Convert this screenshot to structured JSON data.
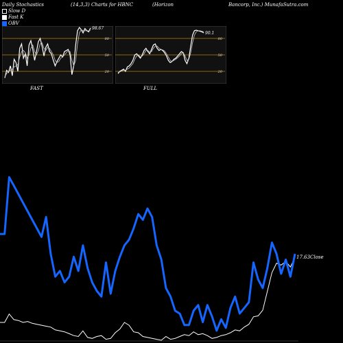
{
  "header": {
    "title_left": "Daily Stochastics",
    "params": "(14,3,3) Charts for HBNC",
    "company_a": "(Horizon",
    "company_b": "Bancorp, Inc.) MunafaSutra.com"
  },
  "legend": {
    "items": [
      {
        "label": "Slow  D",
        "swatch": "#000000",
        "border": "#ffffff"
      },
      {
        "label": "Fast K",
        "swatch": "#ffffff",
        "border": "#ffffff"
      },
      {
        "label": "OBV",
        "swatch": "#1565ff",
        "border": "#1565ff"
      }
    ]
  },
  "colors": {
    "background": "#000000",
    "obv": "#1565ff",
    "price": "#ffffff",
    "level_line": "#b8860b",
    "panel_bg": "#111111"
  },
  "chart_data": [
    {
      "type": "line",
      "panel": "FAST",
      "label": "FAST",
      "last_value_label": "98.67",
      "levels": [
        80,
        50,
        20
      ],
      "ylim": [
        0,
        100
      ],
      "series": [
        {
          "name": "Fast K",
          "values": [
            8,
            22,
            18,
            30,
            12,
            42,
            36,
            20,
            62,
            70,
            44,
            52,
            30,
            68,
            76,
            60,
            40,
            56,
            74,
            80,
            66,
            48,
            64,
            70,
            56,
            52,
            40,
            30,
            38,
            44,
            50,
            46,
            56,
            58,
            60,
            50,
            14,
            30,
            68,
            94,
            100,
            96,
            90,
            98,
            94,
            92,
            99
          ]
        },
        {
          "name": "Slow  D",
          "values": [
            10,
            16,
            20,
            22,
            24,
            28,
            30,
            32,
            46,
            56,
            58,
            54,
            44,
            50,
            62,
            68,
            56,
            50,
            58,
            70,
            72,
            62,
            58,
            64,
            62,
            56,
            50,
            40,
            36,
            38,
            44,
            46,
            50,
            54,
            58,
            56,
            40,
            30,
            40,
            70,
            90,
            96,
            94,
            94,
            94,
            94,
            95
          ]
        }
      ]
    },
    {
      "type": "line",
      "panel": "FULL",
      "label": "FULL",
      "last_value_label": "90.1",
      "levels": [
        80,
        50,
        20
      ],
      "ylim": [
        0,
        100
      ],
      "series": [
        {
          "name": "Full K",
          "values": [
            16,
            20,
            22,
            24,
            20,
            28,
            30,
            34,
            40,
            50,
            52,
            48,
            44,
            50,
            58,
            62,
            56,
            52,
            60,
            68,
            70,
            62,
            58,
            60,
            58,
            54,
            48,
            40,
            36,
            38,
            42,
            44,
            48,
            52,
            56,
            54,
            40,
            34,
            44,
            66,
            86,
            94,
            95,
            94,
            93,
            92,
            90
          ]
        },
        {
          "name": "Full D",
          "values": [
            18,
            19,
            21,
            22,
            22,
            24,
            26,
            30,
            34,
            42,
            48,
            50,
            46,
            48,
            52,
            58,
            58,
            55,
            56,
            62,
            66,
            66,
            62,
            60,
            59,
            57,
            52,
            46,
            40,
            38,
            40,
            42,
            45,
            48,
            52,
            54,
            48,
            40,
            42,
            54,
            72,
            86,
            92,
            94,
            94,
            93,
            92
          ]
        }
      ]
    },
    {
      "type": "line",
      "panel": "main",
      "close_label": "17.63",
      "close_suffix": "Close",
      "series": [
        {
          "name": "OBV",
          "values": [
            70,
            70,
            90,
            87,
            84,
            81,
            78,
            75,
            72,
            69,
            76,
            63,
            55,
            57,
            53,
            55,
            62,
            57,
            66,
            58,
            53,
            50,
            48,
            60,
            49,
            57,
            62,
            66,
            68,
            72,
            77,
            75,
            79,
            76,
            66,
            61,
            51,
            48,
            43,
            42,
            38,
            38,
            43,
            45,
            39,
            45,
            41,
            36,
            40,
            37,
            44,
            48,
            42,
            44,
            46,
            60,
            54,
            51,
            58,
            67,
            63,
            56,
            61,
            55,
            63
          ]
        },
        {
          "name": "Price",
          "values": [
            10.7,
            10.7,
            11.6,
            11.0,
            10.9,
            10.7,
            10.8,
            10.6,
            10.5,
            10.4,
            10.3,
            10.2,
            9.9,
            9.8,
            9.7,
            9.5,
            9.3,
            9.2,
            9.8,
            9.1,
            9.0,
            9.2,
            9.3,
            8.9,
            9.0,
            9.6,
            10.0,
            10.7,
            10.4,
            9.7,
            9.6,
            9.2,
            9.1,
            9.0,
            8.9,
            8.8,
            9.2,
            8.9,
            9.0,
            9.2,
            9.4,
            9.3,
            9.7,
            9.4,
            9.5,
            9.3,
            9.0,
            9.1,
            9.3,
            9.4,
            9.6,
            9.9,
            9.8,
            10.2,
            10.5,
            11.3,
            11.4,
            12.0,
            14.0,
            16.0,
            17.0,
            16.8,
            17.2,
            16.6,
            17.63
          ]
        }
      ]
    }
  ]
}
